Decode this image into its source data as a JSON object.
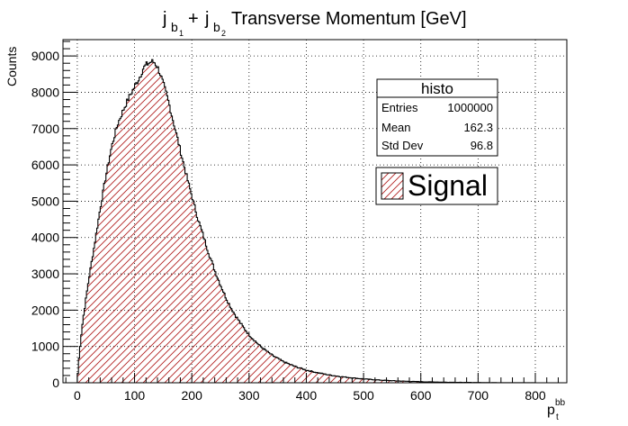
{
  "chart_data": {
    "type": "histogram",
    "title": {
      "main": "j",
      "sub1": "b",
      "subsub1": "1",
      "plus": "+",
      "main2": "j",
      "sub2": "b",
      "subsub2": "2",
      "rest": "Transverse Momentum [GeV]"
    },
    "xlabel": {
      "base": "p",
      "sub": "t",
      "sup": "bb"
    },
    "ylabel": "Counts",
    "xlim": [
      -25,
      855
    ],
    "ylim": [
      0,
      9450
    ],
    "xticks": [
      0,
      100,
      200,
      300,
      400,
      500,
      600,
      700,
      800
    ],
    "yticks": [
      0,
      1000,
      2000,
      3000,
      4000,
      5000,
      6000,
      7000,
      8000,
      9000
    ],
    "grid": true,
    "bin_width": 2,
    "fill_color": "#b22222",
    "line_color": "#000000",
    "shape_points": [
      [
        0,
        0
      ],
      [
        2,
        500
      ],
      [
        6,
        1200
      ],
      [
        10,
        1750
      ],
      [
        20,
        2850
      ],
      [
        30,
        3800
      ],
      [
        40,
        4800
      ],
      [
        50,
        5700
      ],
      [
        60,
        6500
      ],
      [
        70,
        7100
      ],
      [
        80,
        7500
      ],
      [
        90,
        7850
      ],
      [
        100,
        8150
      ],
      [
        110,
        8450
      ],
      [
        115,
        8650
      ],
      [
        120,
        8750
      ],
      [
        125,
        8800
      ],
      [
        130,
        8850
      ],
      [
        135,
        8820
      ],
      [
        140,
        8700
      ],
      [
        145,
        8500
      ],
      [
        150,
        8250
      ],
      [
        160,
        7700
      ],
      [
        170,
        7050
      ],
      [
        180,
        6400
      ],
      [
        190,
        5750
      ],
      [
        200,
        5150
      ],
      [
        210,
        4550
      ],
      [
        220,
        4050
      ],
      [
        230,
        3550
      ],
      [
        240,
        3100
      ],
      [
        250,
        2700
      ],
      [
        260,
        2330
      ],
      [
        270,
        2020
      ],
      [
        280,
        1760
      ],
      [
        290,
        1530
      ],
      [
        300,
        1320
      ],
      [
        320,
        1000
      ],
      [
        340,
        760
      ],
      [
        360,
        580
      ],
      [
        380,
        450
      ],
      [
        400,
        350
      ],
      [
        420,
        275
      ],
      [
        440,
        215
      ],
      [
        460,
        170
      ],
      [
        480,
        135
      ],
      [
        500,
        105
      ],
      [
        520,
        82
      ],
      [
        540,
        64
      ],
      [
        560,
        50
      ],
      [
        580,
        38
      ],
      [
        600,
        29
      ],
      [
        620,
        22
      ],
      [
        640,
        16
      ],
      [
        660,
        12
      ],
      [
        680,
        9
      ],
      [
        700,
        6
      ],
      [
        720,
        4
      ],
      [
        740,
        3
      ],
      [
        760,
        2
      ],
      [
        780,
        1
      ],
      [
        800,
        0
      ]
    ],
    "stats": {
      "name": "histo",
      "rows": [
        {
          "label": "Entries",
          "value": "1000000"
        },
        {
          "label": "Mean",
          "value": "162.3"
        },
        {
          "label": "Std Dev",
          "value": "96.8"
        }
      ]
    },
    "legend": {
      "entries": [
        {
          "name": "Signal"
        }
      ],
      "position": "top-right"
    }
  }
}
